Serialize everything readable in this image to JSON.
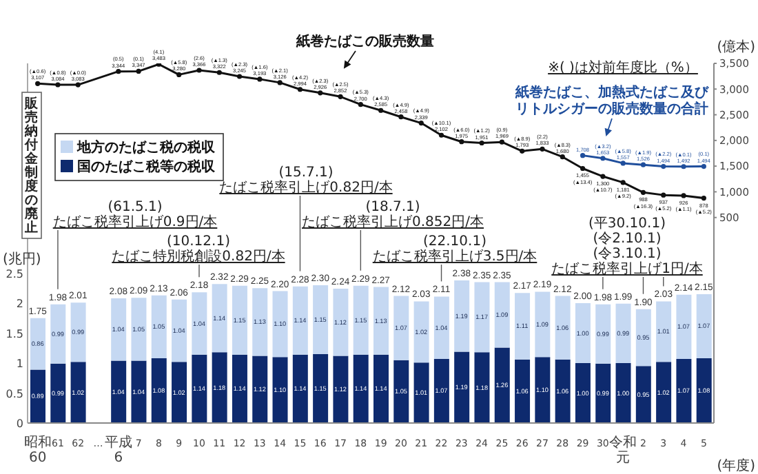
{
  "chart_data": {
    "type": "bar",
    "stacked": true,
    "legend": "top left",
    "marker": "circle",
    "categories": [
      "昭和60",
      "61",
      "62",
      "…",
      "平成6",
      "7",
      "8",
      "9",
      "10",
      "11",
      "12",
      "13",
      "14",
      "15",
      "16",
      "17",
      "18",
      "19",
      "20",
      "21",
      "22",
      "23",
      "24",
      "25",
      "26",
      "27",
      "28",
      "29",
      "30",
      "令和元",
      "2",
      "3",
      "4",
      "5"
    ],
    "series": [
      {
        "name": "国のたばこ税等の税収",
        "color": "#0e2a6e",
        "values": [
          0.89,
          0.99,
          1.02,
          null,
          1.04,
          1.04,
          1.08,
          1.02,
          1.14,
          1.18,
          1.14,
          1.12,
          1.1,
          1.14,
          1.15,
          1.12,
          1.14,
          1.14,
          1.05,
          1.01,
          1.07,
          1.19,
          1.18,
          1.26,
          1.06,
          1.1,
          1.06,
          1.0,
          0.99,
          1.0,
          0.95,
          1.02,
          1.07,
          1.08
        ],
        "value_labels": [
          "0.89",
          "0.99",
          "1.02",
          null,
          "1.04",
          "1.04",
          "1.08",
          "1.02",
          "1.14",
          "1.18",
          "1.14",
          "1.12",
          "1.10",
          "1.14",
          "1.15",
          "1.12",
          "1.14",
          "1.14",
          "1.05",
          "1.01",
          "1.07",
          "1.19",
          "1.18",
          "1.26",
          "1.06",
          "1.10",
          "1.06",
          "1.00",
          "0.99",
          "1.00",
          "0.95",
          "1.02",
          "1.07",
          "1.08"
        ]
      },
      {
        "name": "地方のたばこ税の税収",
        "color": "#c5d8f2",
        "values": [
          0.86,
          0.99,
          0.99,
          null,
          1.04,
          1.05,
          1.05,
          1.04,
          1.04,
          1.14,
          1.15,
          1.13,
          1.1,
          1.14,
          1.15,
          1.12,
          1.15,
          1.13,
          1.07,
          1.02,
          1.04,
          1.19,
          1.17,
          1.09,
          1.11,
          1.09,
          1.06,
          1.0,
          0.99,
          0.99,
          0.95,
          1.01,
          1.07,
          1.07
        ],
        "value_labels": [
          "0.86",
          "0.99",
          "0.99",
          null,
          "1.04",
          "1.05",
          "1.05",
          "1.04",
          "1.04",
          "1.14",
          "1.15",
          "1.13",
          "1.10",
          "1.14",
          "1.15",
          "1.12",
          "1.15",
          "1.13",
          "1.07",
          "1.02",
          "1.04",
          "1.19",
          "1.17",
          "1.09",
          "1.11",
          "1.09",
          "1.06",
          "1.00",
          "0.99",
          "0.99",
          "0.95",
          "1.01",
          "1.07",
          "1.07"
        ]
      },
      {
        "name": "紙巻たばこの販売数量",
        "type": "line",
        "axis": "y2",
        "color": "#111111",
        "values": [
          3107,
          3084,
          3083,
          null,
          3344,
          3347,
          3483,
          3280,
          3366,
          3322,
          3245,
          3193,
          3126,
          2994,
          2926,
          2852,
          2700,
          2585,
          2458,
          2339,
          2102,
          1975,
          1951,
          1969,
          1793,
          1833,
          1680,
          1455,
          1300,
          1181,
          988,
          937,
          926,
          878
        ],
        "value_labels": [
          "(▲0.6)\n3,107",
          "(▲0.8)\n3,084",
          "(▲0.0)\n3,083",
          null,
          "(0.5)\n3,344",
          "(0.1)\n3,347",
          "(4.1)\n3,483",
          "(▲5.8)\n3,280",
          "(2.6)\n3,366",
          "(▲1.3)\n3,322",
          "(▲2.3)\n3,245",
          "(▲1.6)\n3,193",
          "(▲2.1)\n3,126",
          "(▲4.2)\n2,994",
          "(▲2.3)\n2,926",
          "(▲2.5)\n2,852",
          "(▲5.3)\n2,700",
          "(▲4.3)\n2,585",
          "(▲4.9)\n2,458",
          "(▲4.9)\n2,339",
          "(▲10.1)\n2,102",
          "(▲6.0)\n1,975",
          "(▲1.2)\n1,951",
          "(0.9)\n1,969",
          "(▲8.9)\n1,793",
          "(2.2)\n1,833",
          "(▲8.3)\n1,680",
          "1,455\n(▲13.4)",
          "1,300\n(▲10.7)",
          "1,181\n(▲9.2)",
          "988\n(▲16.3)",
          "937\n(▲5.2)",
          "926\n(▲1.1)",
          "878\n(▲5.2)"
        ]
      },
      {
        "name": "紙巻たばこ、加熱式たばこ及びリトルシガーの販売数量の合計",
        "type": "line",
        "axis": "y2",
        "color": "#1f4e9c",
        "values": [
          null,
          null,
          null,
          null,
          null,
          null,
          null,
          null,
          null,
          null,
          null,
          null,
          null,
          null,
          null,
          null,
          null,
          null,
          null,
          null,
          null,
          null,
          null,
          null,
          null,
          null,
          null,
          1708,
          1653,
          1557,
          1526,
          1494,
          1492,
          1494
        ],
        "value_labels": [
          null,
          null,
          null,
          null,
          null,
          null,
          null,
          null,
          null,
          null,
          null,
          null,
          null,
          null,
          null,
          null,
          null,
          null,
          null,
          null,
          null,
          null,
          null,
          null,
          null,
          null,
          null,
          "1,708",
          "(▲3.2)\n1,653",
          "(▲5.8)\n1,557",
          "(▲1.9)\n1,526",
          "(▲2.2)\n1,494",
          "(▲0.1)\n1,492",
          "(0.1)\n1,494"
        ]
      }
    ],
    "totals": [
      "1.75",
      "1.98",
      "2.01",
      null,
      "2.08",
      "2.09",
      "2.13",
      "2.06",
      "2.18",
      "2.32",
      "2.29",
      "2.25",
      "2.20",
      "2.28",
      "2.30",
      "2.24",
      "2.29",
      "2.27",
      "2.12",
      "2.03",
      "2.11",
      "2.38",
      "2.35",
      "2.35",
      "2.17",
      "2.19",
      "2.12",
      "2.00",
      "1.98",
      "1.99",
      "1.90",
      "2.03",
      "2.14",
      "2.15"
    ],
    "ylim": [
      0,
      6
    ],
    "yticks": [
      0,
      0.5,
      1,
      1.5,
      2,
      2.5
    ],
    "y2lim": [
      -3500,
      3500
    ],
    "y2ticks": [
      {
        "value": 500,
        "label": "500"
      },
      {
        "value": 1000,
        "label": "1,000"
      },
      {
        "value": 1500,
        "label": "1,500"
      },
      {
        "value": 2000,
        "label": "2,000"
      },
      {
        "value": 2500,
        "label": "2,500"
      },
      {
        "value": 3000,
        "label": "3,000"
      },
      {
        "value": 3500,
        "label": "3,500"
      }
    ],
    "ylabel": "(兆円)",
    "y2label": "(億本)",
    "xlabel": "(年度)",
    "annotations": [
      "(61.5.1)\nたばこ税率引上げ0.9円/本",
      "(10.12.1)\nたばこ特別税創設0.82円/本",
      "(15.7.1)\nたばこ税率引上げ0.82円/本",
      "(18.7.1)\nたばこ税率引上げ0.852円/本",
      "(22.10.1)\nたばこ税率引上げ3.5円/本",
      "(平30.10.1)\n(令2.10.1)\n(令3.10.1)\nたばこ税率引上げ1円/本",
      "販売納付金制度の廃止",
      "※( )は対前年度比（%）"
    ]
  }
}
